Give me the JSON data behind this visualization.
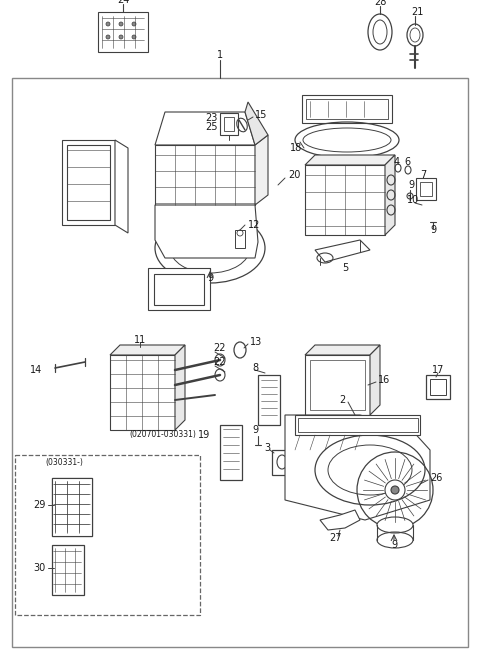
{
  "bg_color": "#ffffff",
  "line_color": "#404040",
  "text_color": "#1a1a1a",
  "fig_width": 4.8,
  "fig_height": 6.59,
  "dpi": 100
}
